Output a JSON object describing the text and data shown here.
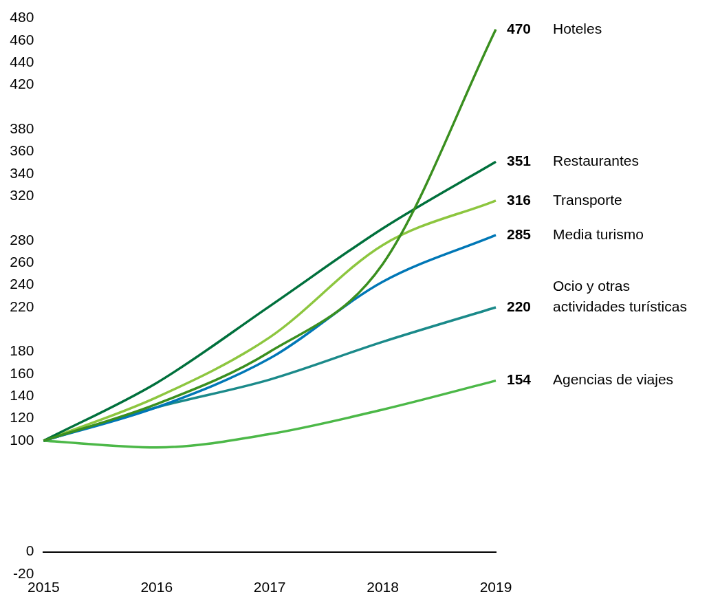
{
  "chart_data": {
    "type": "line",
    "categories": [
      "2015",
      "2016",
      "2017",
      "2018",
      "2019"
    ],
    "ylim": [
      -20,
      480
    ],
    "yticks": [
      -20,
      0,
      100,
      120,
      140,
      160,
      180,
      220,
      240,
      260,
      280,
      320,
      340,
      360,
      380,
      420,
      440,
      460,
      480
    ],
    "grid": false,
    "legend": false,
    "marker": "none",
    "line_style": "solid",
    "series": [
      {
        "name": "Hoteles",
        "color": "#3a8f1f",
        "values": [
          100,
          133,
          180,
          259,
          470
        ],
        "value_labels": [
          null,
          null,
          null,
          null,
          "470"
        ]
      },
      {
        "name": "Restaurantes",
        "color": "#00703c",
        "values": [
          100,
          152,
          221,
          291,
          351
        ],
        "value_labels": [
          null,
          null,
          null,
          null,
          "351"
        ]
      },
      {
        "name": "Transporte",
        "color": "#8dc63f",
        "values": [
          100,
          139,
          193,
          276,
          316
        ],
        "value_labels": [
          null,
          null,
          null,
          null,
          "316"
        ]
      },
      {
        "name": "Media turismo",
        "color": "#0077b6",
        "values": [
          100,
          130,
          174,
          243,
          285
        ],
        "value_labels": [
          null,
          null,
          null,
          null,
          "285"
        ]
      },
      {
        "name": "Ocio y otras actividades turísticas",
        "color": "#1b8a8a",
        "values": [
          100,
          130,
          155,
          189,
          220
        ],
        "value_labels": [
          null,
          null,
          null,
          null,
          "220"
        ]
      },
      {
        "name": "Agencias de viajes",
        "color": "#4cb848",
        "values": [
          100,
          94,
          106,
          128,
          154
        ],
        "value_labels": [
          null,
          null,
          null,
          null,
          "154"
        ]
      }
    ]
  }
}
